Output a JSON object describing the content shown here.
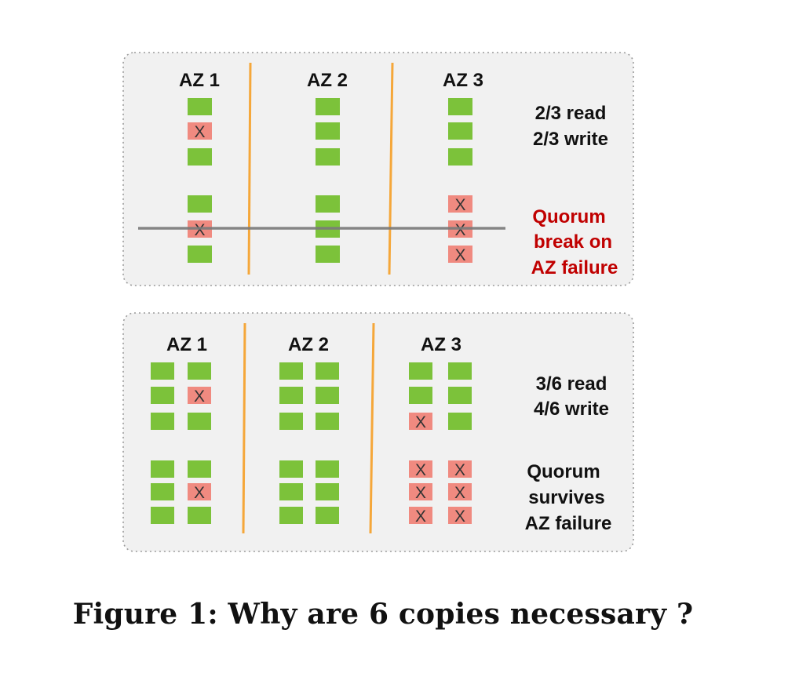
{
  "colors": {
    "ok": "#7cc23a",
    "failed": "#f08a80",
    "divider": "#f5a73a",
    "panel_bg": "#f1f1f1",
    "panel_border": "#9a9a9a",
    "strike": "#7a7a7a",
    "alert_text": "#c00000"
  },
  "failed_mark": "X",
  "top": {
    "az_labels": [
      "AZ 1",
      "AZ 2",
      "AZ 3"
    ],
    "note_lines": [
      "2/3 read",
      "2/3 write"
    ],
    "alert_lines": [
      "Quorum",
      "break on",
      "AZ failure"
    ],
    "copies": [
      {
        "az": 1,
        "col": 0,
        "row": 0,
        "state": "ok"
      },
      {
        "az": 1,
        "col": 0,
        "row": 1,
        "state": "failed"
      },
      {
        "az": 1,
        "col": 0,
        "row": 2,
        "state": "ok"
      },
      {
        "az": 2,
        "col": 0,
        "row": 0,
        "state": "ok"
      },
      {
        "az": 2,
        "col": 0,
        "row": 1,
        "state": "ok"
      },
      {
        "az": 2,
        "col": 0,
        "row": 2,
        "state": "ok"
      },
      {
        "az": 3,
        "col": 0,
        "row": 0,
        "state": "ok"
      },
      {
        "az": 3,
        "col": 0,
        "row": 1,
        "state": "ok"
      },
      {
        "az": 3,
        "col": 0,
        "row": 2,
        "state": "ok"
      },
      {
        "az": 1,
        "col": 0,
        "row": 3,
        "state": "ok"
      },
      {
        "az": 1,
        "col": 0,
        "row": 4,
        "state": "failed"
      },
      {
        "az": 1,
        "col": 0,
        "row": 5,
        "state": "ok"
      },
      {
        "az": 2,
        "col": 0,
        "row": 3,
        "state": "ok"
      },
      {
        "az": 2,
        "col": 0,
        "row": 4,
        "state": "ok"
      },
      {
        "az": 2,
        "col": 0,
        "row": 5,
        "state": "ok"
      },
      {
        "az": 3,
        "col": 0,
        "row": 3,
        "state": "failed"
      },
      {
        "az": 3,
        "col": 0,
        "row": 4,
        "state": "failed"
      },
      {
        "az": 3,
        "col": 0,
        "row": 5,
        "state": "failed"
      }
    ]
  },
  "bottom": {
    "az_labels": [
      "AZ 1",
      "AZ 2",
      "AZ 3"
    ],
    "note_lines": [
      "3/6 read",
      "4/6 write"
    ],
    "status_lines": [
      "Quorum",
      "survives",
      "AZ failure"
    ],
    "copies": [
      {
        "az": 1,
        "col": 0,
        "row": 0,
        "state": "ok"
      },
      {
        "az": 1,
        "col": 1,
        "row": 0,
        "state": "ok"
      },
      {
        "az": 1,
        "col": 0,
        "row": 1,
        "state": "ok"
      },
      {
        "az": 1,
        "col": 1,
        "row": 1,
        "state": "failed"
      },
      {
        "az": 1,
        "col": 0,
        "row": 2,
        "state": "ok"
      },
      {
        "az": 1,
        "col": 1,
        "row": 2,
        "state": "ok"
      },
      {
        "az": 2,
        "col": 0,
        "row": 0,
        "state": "ok"
      },
      {
        "az": 2,
        "col": 1,
        "row": 0,
        "state": "ok"
      },
      {
        "az": 2,
        "col": 0,
        "row": 1,
        "state": "ok"
      },
      {
        "az": 2,
        "col": 1,
        "row": 1,
        "state": "ok"
      },
      {
        "az": 2,
        "col": 0,
        "row": 2,
        "state": "ok"
      },
      {
        "az": 2,
        "col": 1,
        "row": 2,
        "state": "ok"
      },
      {
        "az": 3,
        "col": 0,
        "row": 0,
        "state": "ok"
      },
      {
        "az": 3,
        "col": 1,
        "row": 0,
        "state": "ok"
      },
      {
        "az": 3,
        "col": 0,
        "row": 1,
        "state": "ok"
      },
      {
        "az": 3,
        "col": 1,
        "row": 1,
        "state": "ok"
      },
      {
        "az": 3,
        "col": 0,
        "row": 2,
        "state": "failed"
      },
      {
        "az": 3,
        "col": 1,
        "row": 2,
        "state": "ok"
      },
      {
        "az": 1,
        "col": 0,
        "row": 3,
        "state": "ok"
      },
      {
        "az": 1,
        "col": 1,
        "row": 3,
        "state": "ok"
      },
      {
        "az": 1,
        "col": 0,
        "row": 4,
        "state": "ok"
      },
      {
        "az": 1,
        "col": 1,
        "row": 4,
        "state": "failed"
      },
      {
        "az": 1,
        "col": 0,
        "row": 5,
        "state": "ok"
      },
      {
        "az": 1,
        "col": 1,
        "row": 5,
        "state": "ok"
      },
      {
        "az": 2,
        "col": 0,
        "row": 3,
        "state": "ok"
      },
      {
        "az": 2,
        "col": 1,
        "row": 3,
        "state": "ok"
      },
      {
        "az": 2,
        "col": 0,
        "row": 4,
        "state": "ok"
      },
      {
        "az": 2,
        "col": 1,
        "row": 4,
        "state": "ok"
      },
      {
        "az": 2,
        "col": 0,
        "row": 5,
        "state": "ok"
      },
      {
        "az": 2,
        "col": 1,
        "row": 5,
        "state": "ok"
      },
      {
        "az": 3,
        "col": 0,
        "row": 3,
        "state": "failed"
      },
      {
        "az": 3,
        "col": 1,
        "row": 3,
        "state": "failed"
      },
      {
        "az": 3,
        "col": 0,
        "row": 4,
        "state": "failed"
      },
      {
        "az": 3,
        "col": 1,
        "row": 4,
        "state": "failed"
      },
      {
        "az": 3,
        "col": 0,
        "row": 5,
        "state": "failed"
      },
      {
        "az": 3,
        "col": 1,
        "row": 5,
        "state": "failed"
      }
    ]
  },
  "caption": "Figure 1: Why are 6 copies necessary ?"
}
